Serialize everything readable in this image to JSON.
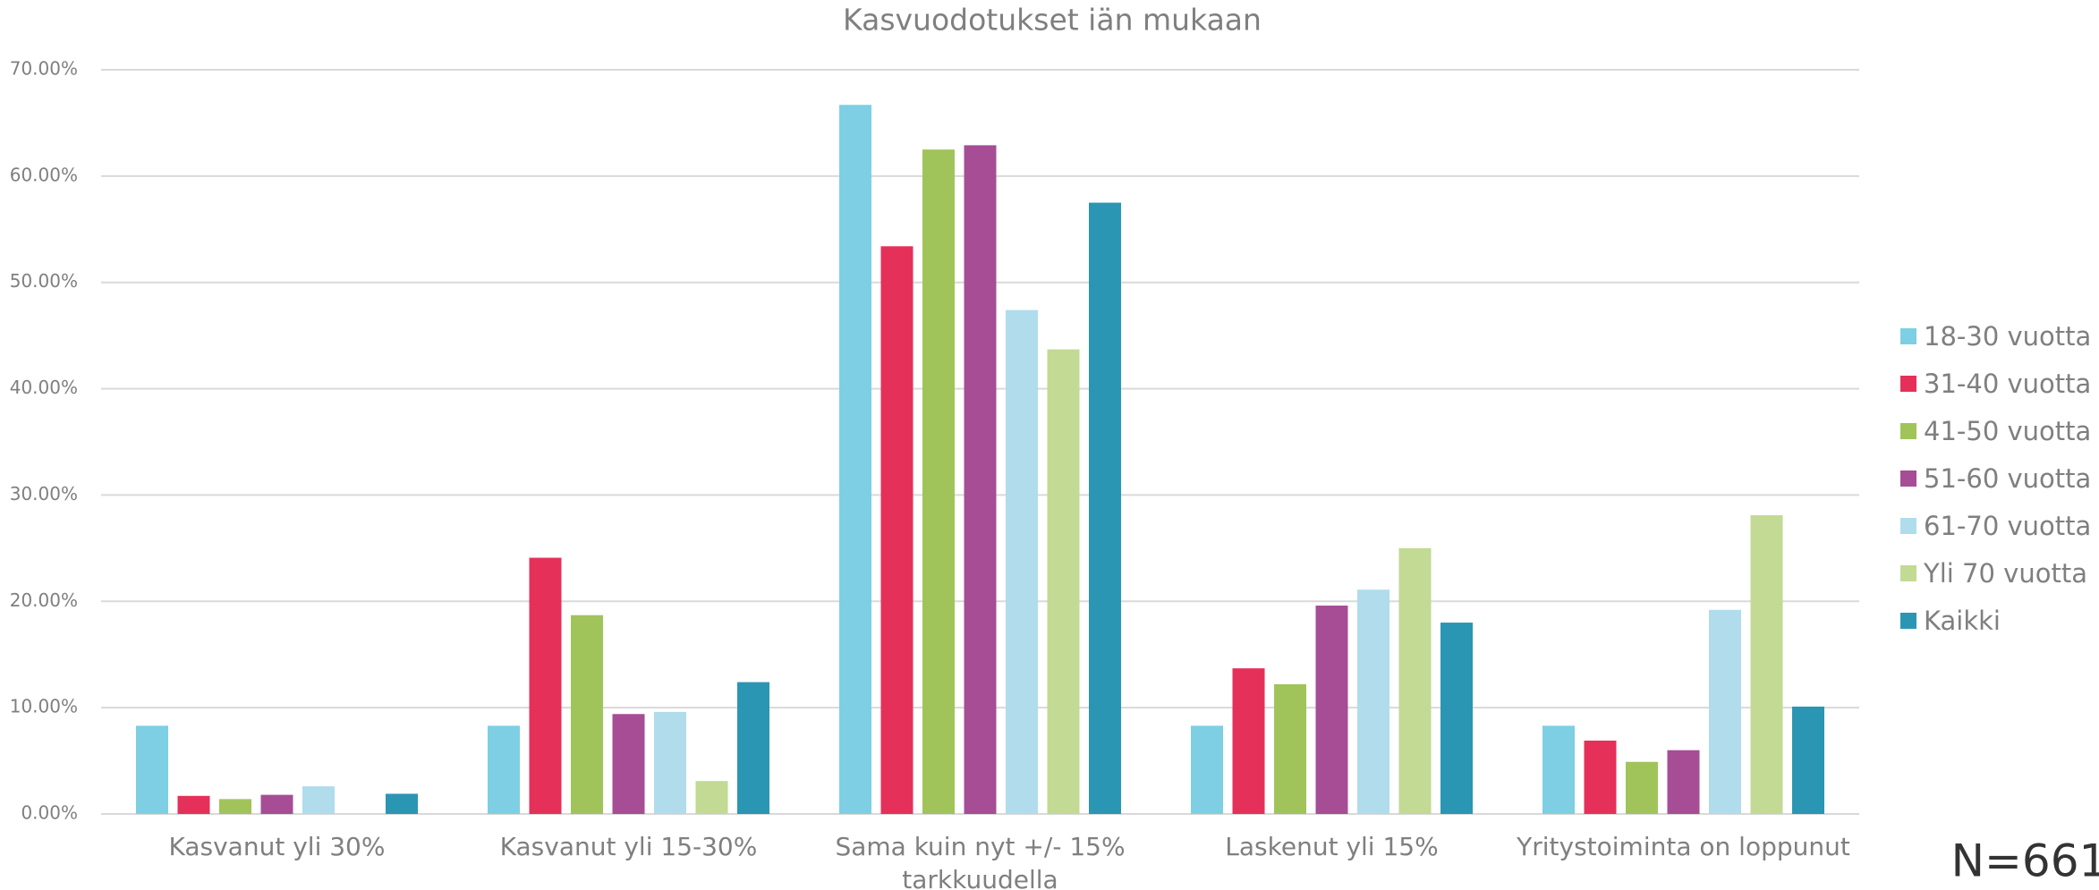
{
  "chart_data": {
    "type": "bar",
    "title": "Kasvuodotukset iän mukaan",
    "categories": [
      "Kasvanut yli 30%",
      "Kasvanut yli 15-30%",
      "Sama kuin nyt +/- 15% tarkkuudella",
      "Laskenut yli 15%",
      "Yritystoiminta on loppunut"
    ],
    "series": [
      {
        "name": "18-30 vuotta",
        "color": "#7ecfe4",
        "values": [
          8.3,
          8.3,
          66.7,
          8.3,
          8.3
        ]
      },
      {
        "name": "31-40 vuotta",
        "color": "#e5305a",
        "values": [
          1.7,
          24.1,
          53.4,
          13.7,
          6.9
        ]
      },
      {
        "name": "41-50 vuotta",
        "color": "#a0c45a",
        "values": [
          1.4,
          18.7,
          62.5,
          12.2,
          4.9
        ]
      },
      {
        "name": "51-60 vuotta",
        "color": "#a64d96",
        "values": [
          1.8,
          9.4,
          62.9,
          19.6,
          6.0
        ]
      },
      {
        "name": "61-70 vuotta",
        "color": "#b0dcec",
        "values": [
          2.6,
          9.6,
          47.4,
          21.1,
          19.2
        ]
      },
      {
        "name": "Yli 70 vuotta",
        "color": "#c2da94",
        "values": [
          0,
          3.1,
          43.7,
          25.0,
          28.1
        ]
      },
      {
        "name": "Kaikki",
        "color": "#2a96b4",
        "values": [
          1.9,
          12.4,
          57.5,
          18.0,
          10.1
        ]
      }
    ],
    "ylim": [
      0,
      70
    ],
    "yticks": [
      {
        "value": 0,
        "label": "0.00%"
      },
      {
        "value": 10,
        "label": "10.00%"
      },
      {
        "value": 20,
        "label": "20.00%"
      },
      {
        "value": 30,
        "label": "30.00%"
      },
      {
        "value": 40,
        "label": "40.00%"
      },
      {
        "value": 50,
        "label": "50.00%"
      },
      {
        "value": 60,
        "label": "60.00%"
      },
      {
        "value": 70,
        "label": "70.00%"
      }
    ],
    "grid": true,
    "legend": "right",
    "annotation": "N=661"
  }
}
